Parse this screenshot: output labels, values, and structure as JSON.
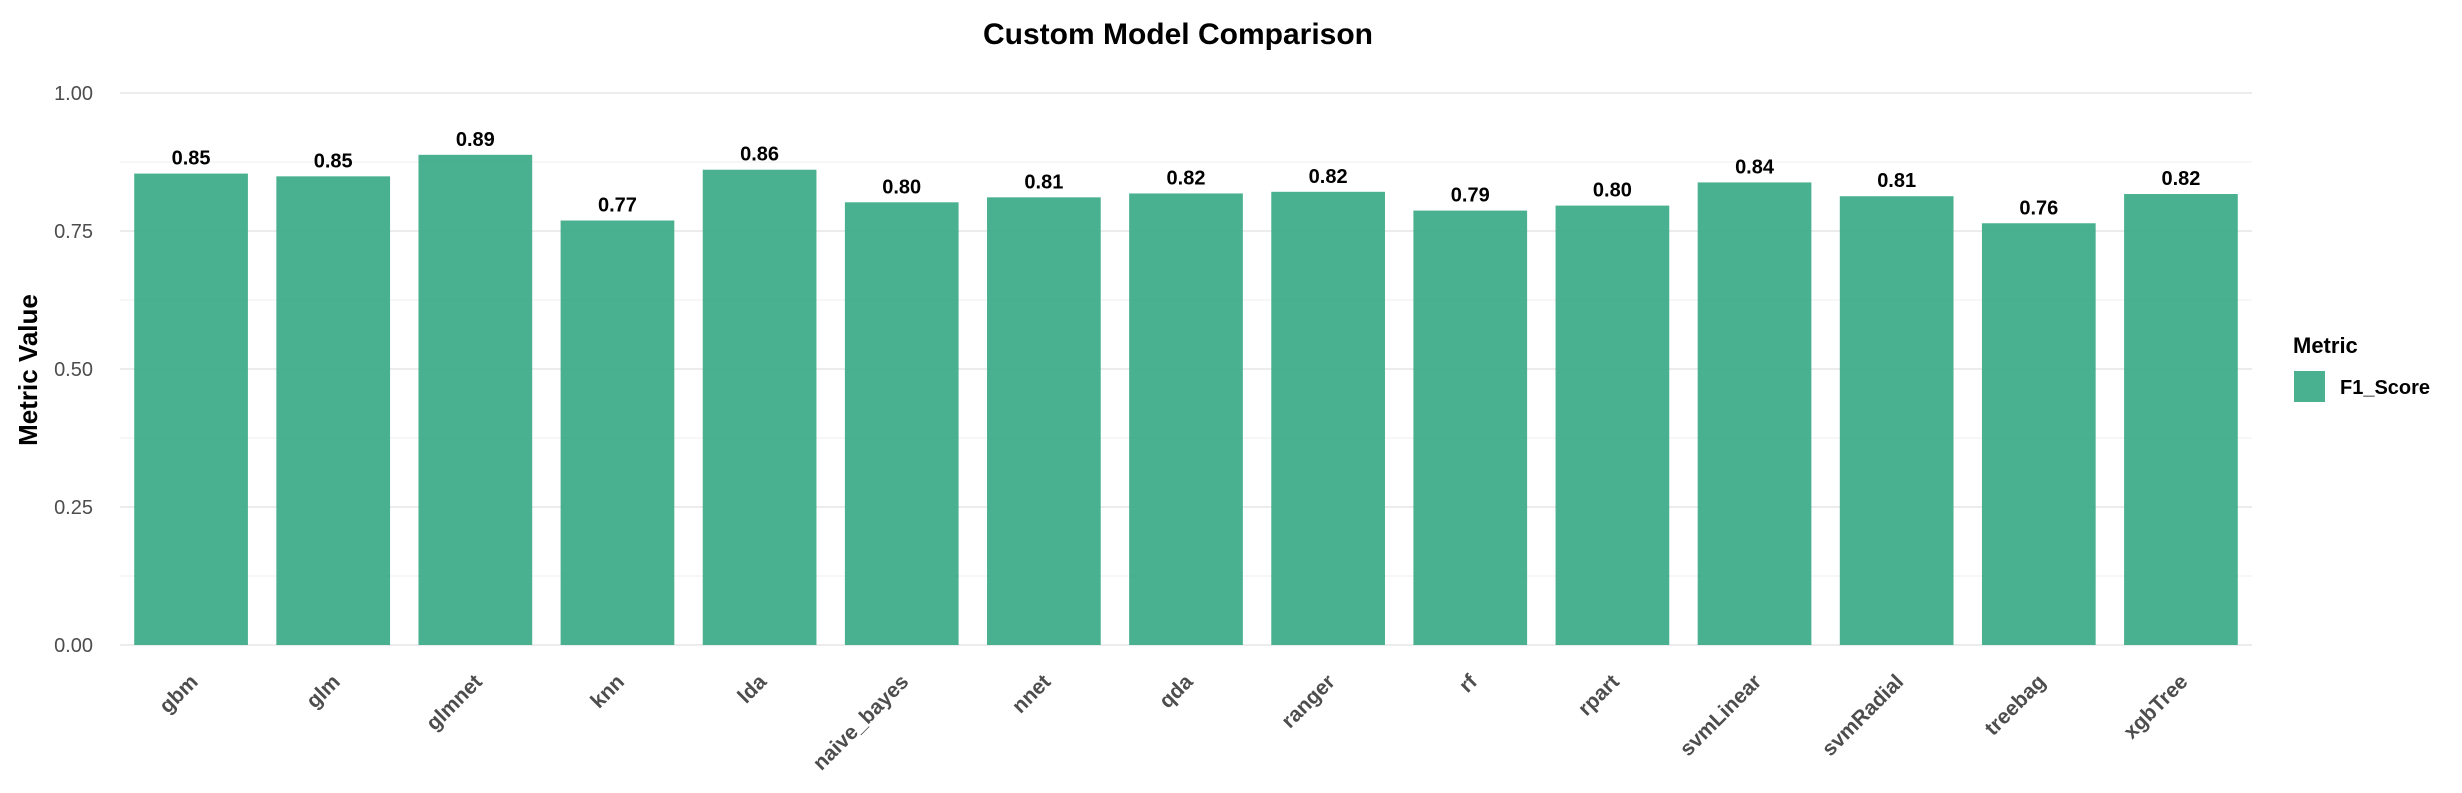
{
  "chart_data": {
    "type": "bar",
    "title": "Custom Model Comparison",
    "xlabel": "",
    "ylabel": "Metric Value",
    "categories": [
      "gbm",
      "glm",
      "glmnet",
      "knn",
      "lda",
      "naive_bayes",
      "nnet",
      "qda",
      "ranger",
      "rf",
      "rpart",
      "svmLinear",
      "svmRadial",
      "treebag",
      "xgbTree"
    ],
    "series": [
      {
        "name": "F1_Score",
        "color": "#3aaa85",
        "values": [
          0.854,
          0.849,
          0.888,
          0.769,
          0.861,
          0.802,
          0.811,
          0.818,
          0.821,
          0.787,
          0.796,
          0.838,
          0.813,
          0.764,
          0.817
        ],
        "labels": [
          "0.85",
          "0.85",
          "0.89",
          "0.77",
          "0.86",
          "0.80",
          "0.81",
          "0.82",
          "0.82",
          "0.79",
          "0.80",
          "0.84",
          "0.81",
          "0.76",
          "0.82"
        ]
      }
    ],
    "ylim": [
      0,
      1
    ],
    "yticks": [
      0.0,
      0.25,
      0.5,
      0.75,
      1.0
    ],
    "ytick_labels": [
      "0.00",
      "0.25",
      "0.50",
      "0.75",
      "1.00"
    ],
    "grid": true,
    "legend": {
      "title": "Metric",
      "placement": "right"
    }
  }
}
